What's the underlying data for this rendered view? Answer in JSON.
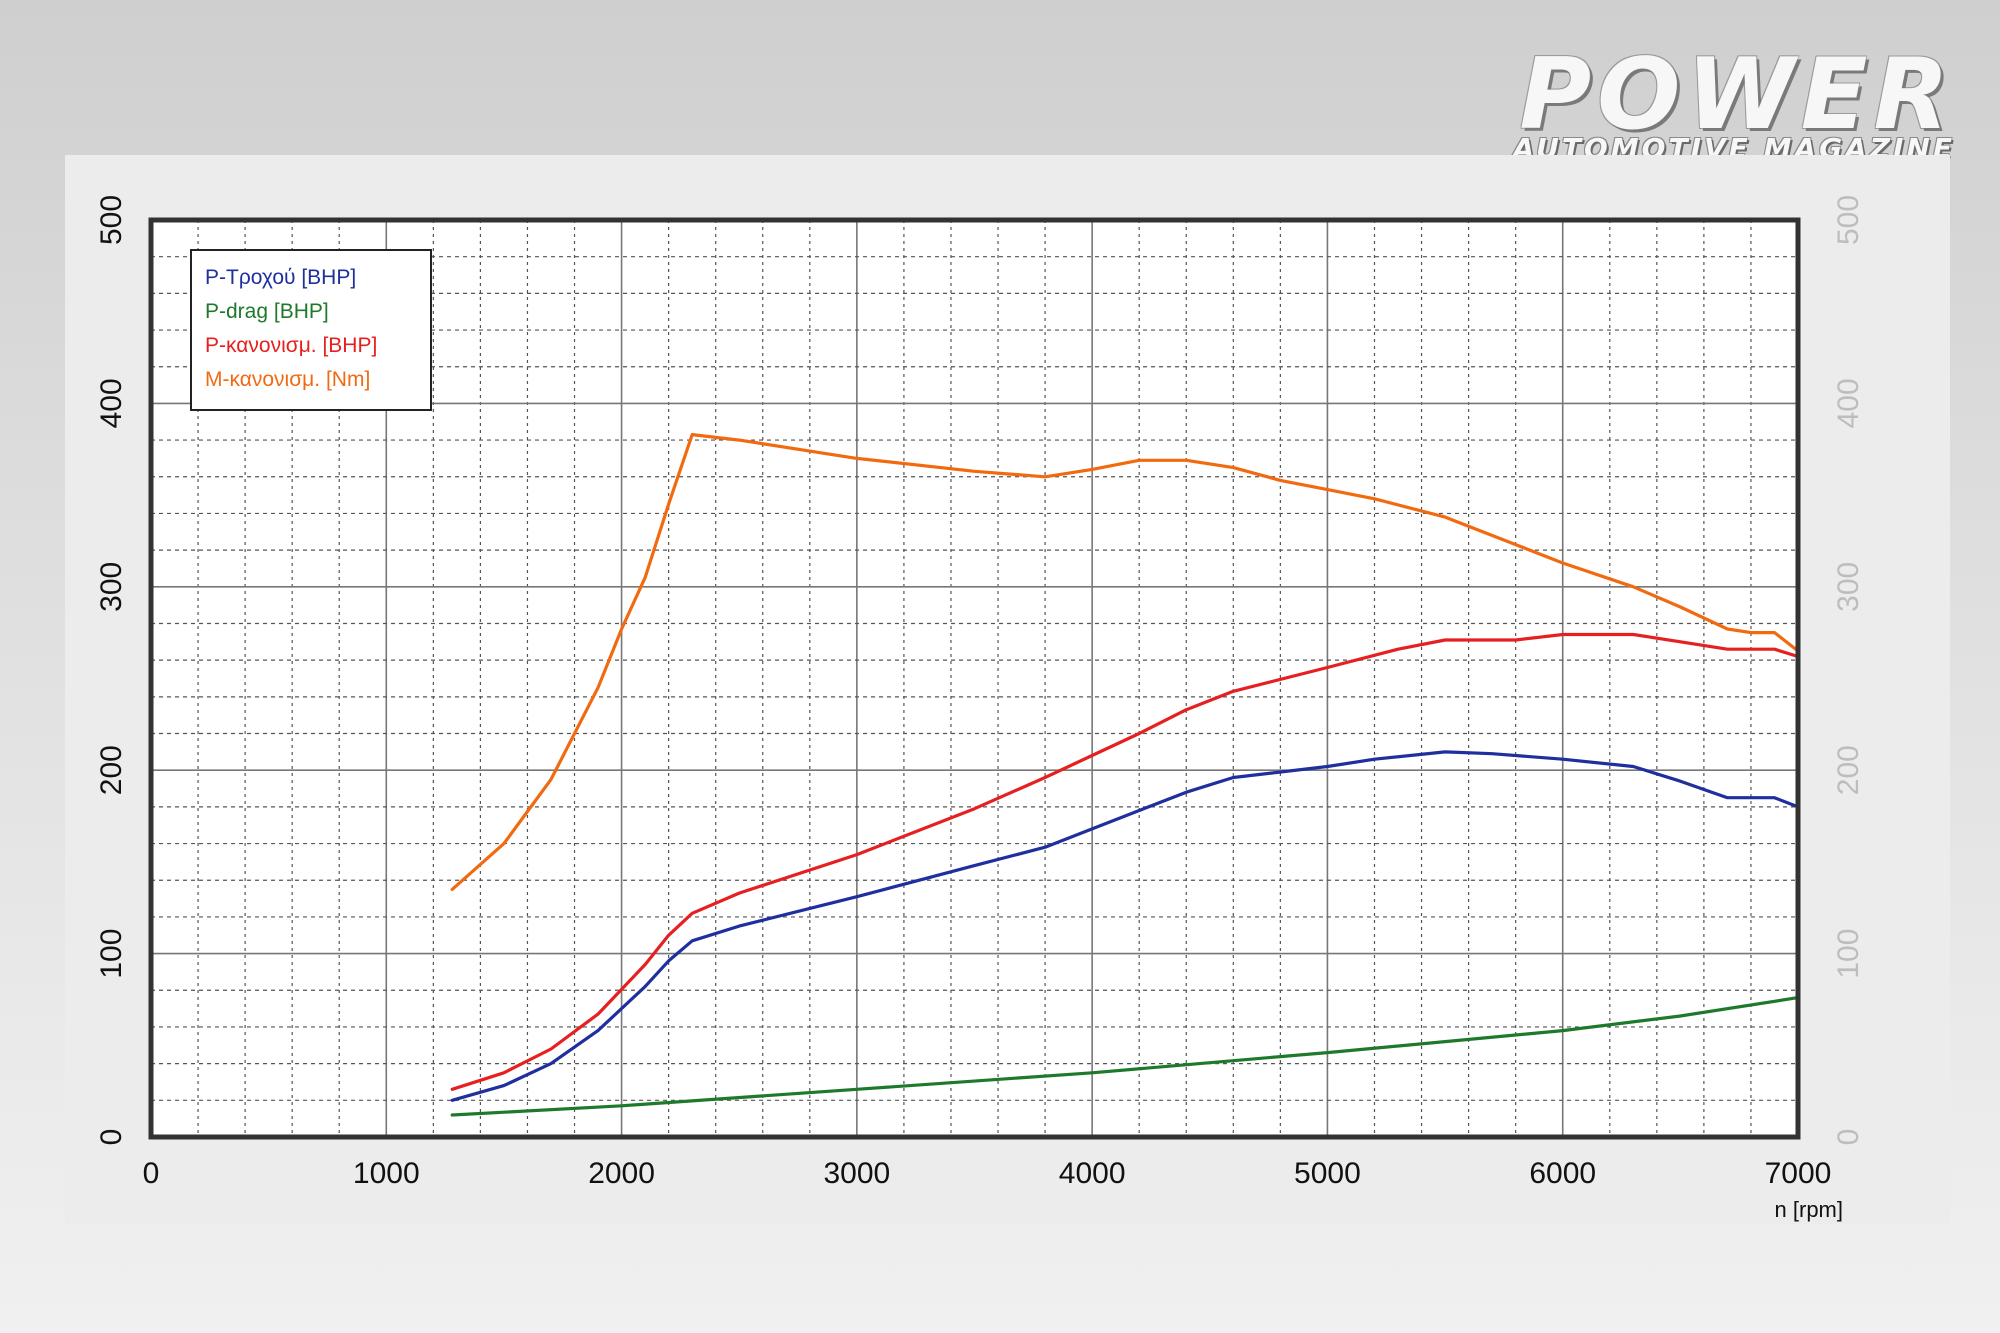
{
  "logo": {
    "main": "POWER",
    "sub": "AUTOMOTIVE MAGAZINE"
  },
  "colors": {
    "p_wheel": "#1f2f9e",
    "p_drag": "#1e7a2a",
    "p_corrected": "#e62020",
    "m_corrected": "#f26a10"
  },
  "chart_data": {
    "type": "line",
    "title": "",
    "xlabel": "n [rpm]",
    "ylabel": "",
    "xlim": [
      0,
      7000
    ],
    "ylim": [
      0,
      500
    ],
    "x_ticks": [
      0,
      1000,
      2000,
      3000,
      4000,
      5000,
      6000,
      7000
    ],
    "y_ticks": [
      0,
      100,
      200,
      300,
      400,
      500
    ],
    "grid": true,
    "legend_position": "top-left",
    "series": [
      {
        "name": "P-Τροχού [BHP]",
        "color_key": "p_wheel",
        "x": [
          1280,
          1500,
          1700,
          1900,
          2100,
          2200,
          2300,
          2500,
          3000,
          3500,
          3800,
          4000,
          4200,
          4400,
          4600,
          5000,
          5200,
          5500,
          5700,
          6000,
          6300,
          6500,
          6700,
          6800,
          6900,
          7000
        ],
        "y": [
          20,
          28,
          40,
          58,
          82,
          96,
          107,
          115,
          131,
          148,
          158,
          168,
          178,
          188,
          196,
          202,
          206,
          210,
          209,
          206,
          202,
          194,
          185,
          185,
          185,
          180
        ]
      },
      {
        "name": "P-drag [BHP]",
        "color_key": "p_drag",
        "x": [
          1280,
          2000,
          3000,
          4000,
          5000,
          5500,
          6000,
          6500,
          7000
        ],
        "y": [
          12,
          17,
          26,
          35,
          46,
          52,
          58,
          66,
          76
        ]
      },
      {
        "name": "P-κανονισμ. [BHP]",
        "color_key": "p_corrected",
        "x": [
          1280,
          1500,
          1700,
          1900,
          2100,
          2200,
          2300,
          2500,
          3000,
          3500,
          3800,
          4000,
          4200,
          4400,
          4600,
          5000,
          5300,
          5500,
          5800,
          6000,
          6300,
          6500,
          6700,
          6800,
          6900,
          7000
        ],
        "y": [
          26,
          35,
          48,
          67,
          94,
          110,
          122,
          133,
          154,
          179,
          196,
          208,
          220,
          233,
          243,
          256,
          266,
          271,
          271,
          274,
          274,
          270,
          266,
          266,
          266,
          262
        ]
      },
      {
        "name": "Μ-κανονισμ. [Nm]",
        "color_key": "m_corrected",
        "x": [
          1280,
          1500,
          1700,
          1900,
          2000,
          2100,
          2200,
          2300,
          2500,
          3000,
          3500,
          3800,
          4000,
          4200,
          4400,
          4600,
          4800,
          5000,
          5200,
          5500,
          5800,
          6000,
          6300,
          6500,
          6700,
          6800,
          6900,
          7000
        ],
        "y": [
          135,
          160,
          195,
          245,
          277,
          305,
          345,
          383,
          380,
          370,
          363,
          360,
          364,
          369,
          369,
          365,
          358,
          353,
          348,
          338,
          323,
          313,
          300,
          289,
          277,
          275,
          275,
          265
        ]
      }
    ]
  }
}
